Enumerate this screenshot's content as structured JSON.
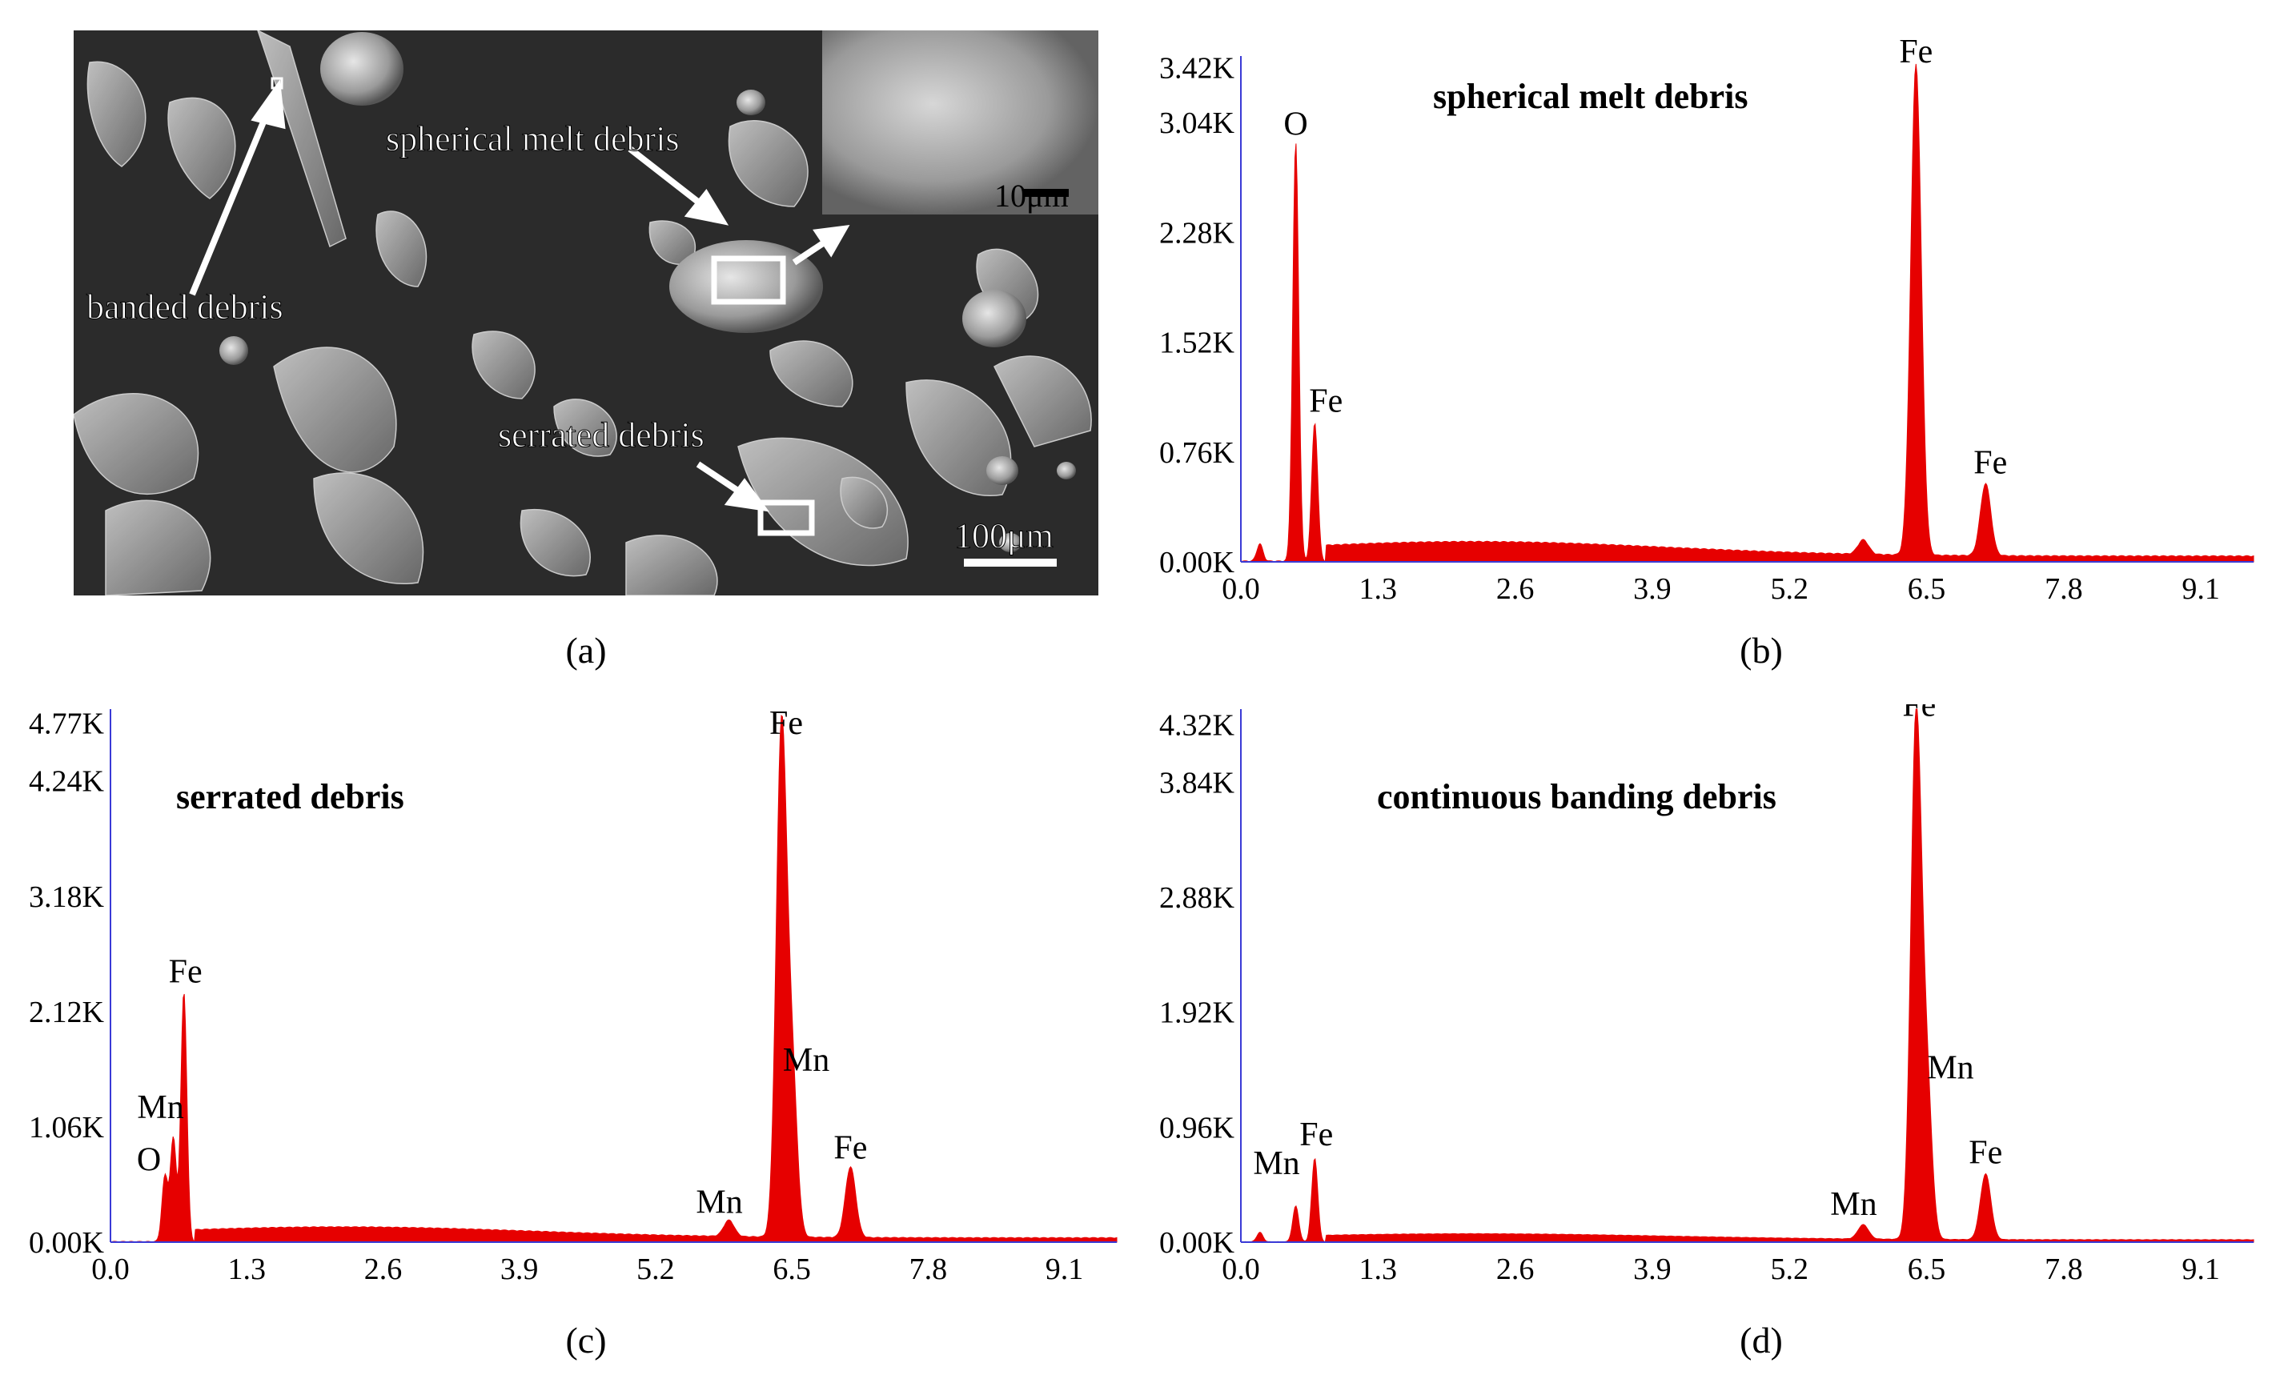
{
  "figure": {
    "captions": [
      "(a)",
      "(b)",
      "(c)",
      "(d)"
    ],
    "sem": {
      "labels": {
        "spherical": "spherical melt debris",
        "banded": "banded debris",
        "serrated": "serrated debris"
      },
      "scalebars": {
        "inset": "10μm",
        "main": "100μm"
      }
    }
  },
  "chart_data": [
    {
      "type": "area",
      "panel": "(b)",
      "title": "spherical melt debris",
      "x_ticks": [
        "0.0",
        "1.3",
        "2.6",
        "3.9",
        "5.2",
        "6.5",
        "7.8",
        "9.1"
      ],
      "y_ticks": [
        "0.00K",
        "0.76K",
        "1.52K",
        "2.28K",
        "3.04K",
        "3.42K"
      ],
      "xlim": [
        0,
        9.6
      ],
      "ylim": [
        0,
        3.5
      ],
      "peaks": [
        {
          "x": 0.52,
          "y": 2.9,
          "label": "O"
        },
        {
          "x": 0.7,
          "y": 0.96,
          "label": "Fe"
        },
        {
          "x": 6.4,
          "y": 3.4,
          "label": "Fe"
        },
        {
          "x": 7.06,
          "y": 0.5,
          "label": "Fe"
        }
      ],
      "minor_peaks": [
        {
          "x": 0.18,
          "y": 0.12
        },
        {
          "x": 5.9,
          "y": 0.1
        }
      ],
      "baseline": 0.1,
      "color": "#e60000"
    },
    {
      "type": "area",
      "panel": "(c)",
      "title": "serrated debris",
      "x_ticks": [
        "0.0",
        "1.3",
        "2.6",
        "3.9",
        "5.2",
        "6.5",
        "7.8",
        "9.1"
      ],
      "y_ticks": [
        "0.00K",
        "1.06K",
        "2.12K",
        "3.18K",
        "4.24K",
        "4.77K"
      ],
      "xlim": [
        0,
        9.6
      ],
      "ylim": [
        0,
        4.9
      ],
      "peaks": [
        {
          "x": 0.52,
          "y": 0.6,
          "label": "O"
        },
        {
          "x": 0.6,
          "y": 0.95,
          "label": "Mn"
        },
        {
          "x": 0.7,
          "y": 2.3,
          "label": "Fe"
        },
        {
          "x": 5.9,
          "y": 0.15,
          "label": "Mn"
        },
        {
          "x": 6.4,
          "y": 4.6,
          "label": "Fe"
        },
        {
          "x": 6.5,
          "y": 1.5,
          "label": "Mn"
        },
        {
          "x": 7.06,
          "y": 0.65,
          "label": "Fe"
        }
      ],
      "baseline": 0.1,
      "color": "#e60000"
    },
    {
      "type": "area",
      "panel": "(d)",
      "title": "continuous banding debris",
      "x_ticks": [
        "0.0",
        "1.3",
        "2.6",
        "3.9",
        "5.2",
        "6.5",
        "7.8",
        "9.1"
      ],
      "y_ticks": [
        "0.00K",
        "0.96K",
        "1.92K",
        "2.88K",
        "3.84K",
        "4.32K"
      ],
      "xlim": [
        0,
        9.6
      ],
      "ylim": [
        0,
        4.45
      ],
      "peaks": [
        {
          "x": 0.52,
          "y": 0.3,
          "label": "Mn"
        },
        {
          "x": 0.7,
          "y": 0.7,
          "label": "Fe"
        },
        {
          "x": 5.9,
          "y": 0.12,
          "label": "Mn"
        },
        {
          "x": 6.4,
          "y": 4.3,
          "label": "Fe"
        },
        {
          "x": 6.5,
          "y": 1.3,
          "label": "Mn"
        },
        {
          "x": 7.06,
          "y": 0.55,
          "label": "Fe"
        }
      ],
      "minor_peaks": [
        {
          "x": 0.18,
          "y": 0.08
        }
      ],
      "baseline": 0.05,
      "color": "#e60000"
    }
  ]
}
